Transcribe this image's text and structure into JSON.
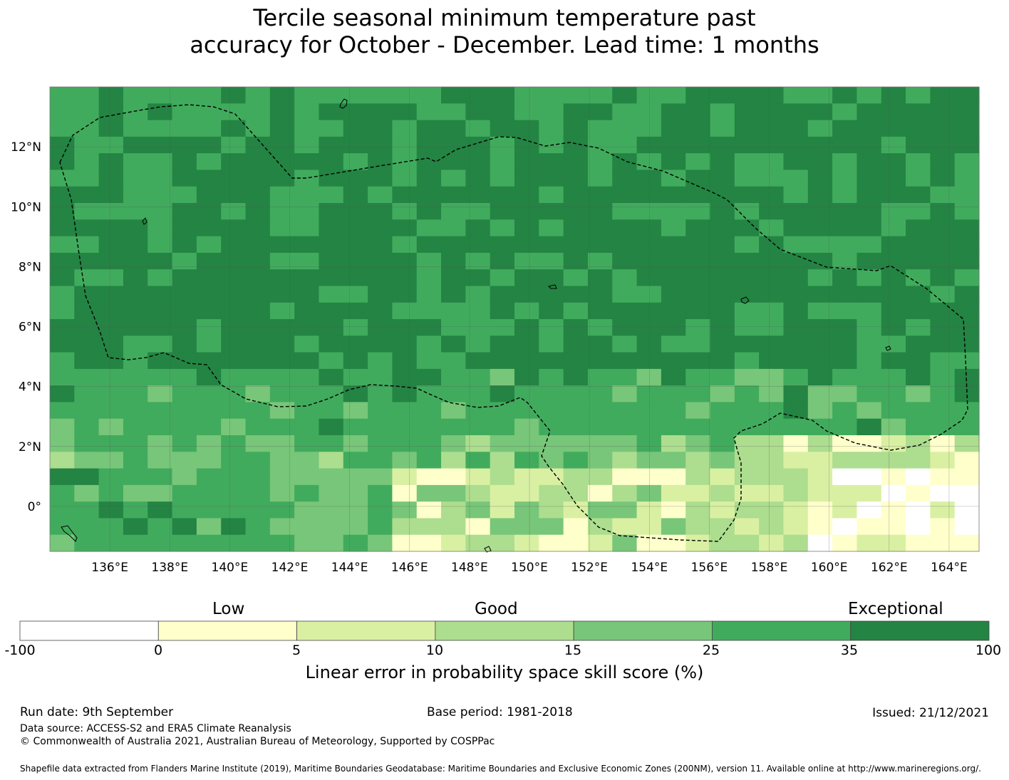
{
  "title_line1": "Tercile seasonal minimum temperature past",
  "title_line2": "accuracy for October - December. Lead time: 1 months",
  "map": {
    "lon_labels": [
      "136°E",
      "138°E",
      "140°E",
      "142°E",
      "144°E",
      "146°E",
      "148°E",
      "150°E",
      "152°E",
      "154°E",
      "156°E",
      "158°E",
      "160°E",
      "162°E",
      "164°E"
    ],
    "lat_labels": [
      "12°N",
      "10°N",
      "8°N",
      "6°N",
      "4°N",
      "2°N",
      "0°"
    ],
    "lon_range": [
      134.0,
      165.0
    ],
    "lat_range": [
      -1.5,
      14.0
    ],
    "grid_step_deg": 0.833,
    "skill_categories": {
      "1": "#ffffcc",
      "2": "#d9f0a3",
      "3": "#addd8e",
      "4": "#78c679",
      "5": "#41ab5d",
      "6": "#238443",
      "0": "#ffffff"
    }
  },
  "colorbar": {
    "category_labels": [
      "Low",
      "Good",
      "Exceptional"
    ],
    "ticks": [
      "-100",
      "0",
      "5",
      "10",
      "15",
      "25",
      "35",
      "100"
    ],
    "colors": [
      "#ffffff",
      "#ffffcc",
      "#d9f0a3",
      "#addd8e",
      "#78c679",
      "#41ab5d",
      "#238443"
    ],
    "label": "Linear error in probability space skill score (%)"
  },
  "footer": {
    "run_date": "Run date: 9th September",
    "base_period": "Base period: 1981-2018",
    "issued": "Issued: 21/12/2021",
    "data_source": "Data source: ACCESS-S2 and ERA5 Climate Reanalysis",
    "copyright": "© Commonwealth of Australia 2021, Australian Bureau of Meteorology, Supported by COSPPac",
    "shapefile": "Shapefile data extracted from Flanders Marine Institute (2019), Maritime Boundaries Geodatabase: Maritime Boundaries and Exclusive Economic Zones (200NM), version 11. Available online at http://www.marineregions.org/."
  }
}
